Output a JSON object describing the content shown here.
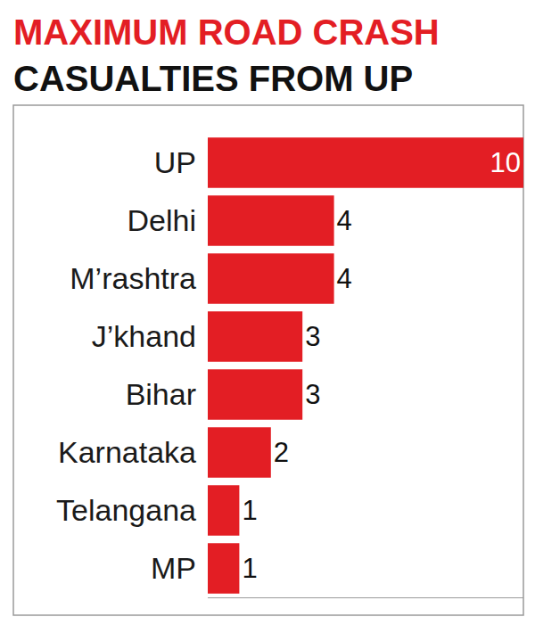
{
  "chart_data": {
    "type": "bar",
    "title": [
      "MAXIMUM ROAD CRASH",
      "CASUALTIES FROM UP"
    ],
    "categories": [
      "UP",
      "Delhi",
      "M’rashtra",
      "J’khand",
      "Bihar",
      "Karnataka",
      "Telangana",
      "MP"
    ],
    "values": [
      10,
      4,
      4,
      3,
      3,
      2,
      1,
      1
    ],
    "color": "#e31e24",
    "orientation": "horizontal",
    "data_labels": true,
    "tick_labels": "y",
    "grid": false,
    "xlim": [
      0,
      10
    ]
  }
}
